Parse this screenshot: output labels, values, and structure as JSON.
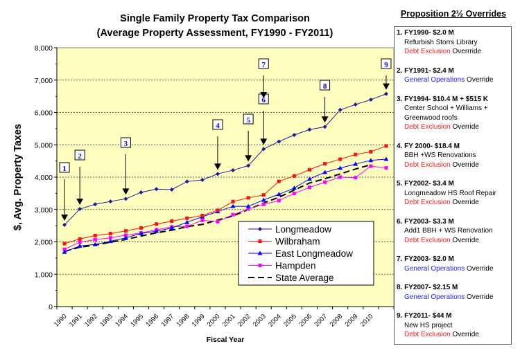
{
  "chart_data": {
    "type": "line",
    "title": "Single Family Property Tax Comparison",
    "subtitle": "(Average Property Assessment, FY1990 - FY2011)",
    "xlabel": "Fiscal Year",
    "ylabel": "$, Avg. Property Taxes",
    "ylim": [
      0,
      8000
    ],
    "yticks": [
      0,
      1000,
      2000,
      3000,
      4000,
      5000,
      6000,
      7000,
      8000
    ],
    "ytick_labels": [
      "0",
      "1,000",
      "2,000",
      "3,000",
      "4,000",
      "5,000",
      "6,000",
      "7,000",
      "8,000"
    ],
    "x": [
      1990,
      1991,
      1992,
      1993,
      1994,
      1995,
      1996,
      1997,
      1998,
      1999,
      2000,
      2001,
      2002,
      2003,
      2004,
      2005,
      2006,
      2007,
      2008,
      2009,
      2010,
      2011
    ],
    "xtick_labels": [
      "1990",
      "1991",
      "1992",
      "1993",
      "1994",
      "1995",
      "1996",
      "1997",
      "1998",
      "1999",
      "2000",
      "2001",
      "2002",
      "2003",
      "2004",
      "2005",
      "2006",
      "2007",
      "2008",
      "2009",
      "2010"
    ],
    "grid": "horizontal dotted",
    "legend_placement": "lower-right",
    "plot_background": "#ffffc0",
    "series": [
      {
        "name": "Longmeadow",
        "color": "#1a1a99",
        "marker": "diamond",
        "values": [
          2525,
          3015,
          3160,
          3250,
          3330,
          3530,
          3630,
          3615,
          3865,
          3915,
          4100,
          4215,
          4355,
          4870,
          5100,
          5305,
          5470,
          5555,
          6080,
          6245,
          6395,
          6575
        ]
      },
      {
        "name": "Wilbraham",
        "color": "#ff1010",
        "marker": "square",
        "values": [
          1945,
          2090,
          2195,
          2255,
          2340,
          2430,
          2550,
          2640,
          2730,
          2815,
          2975,
          3245,
          3360,
          3450,
          3870,
          4035,
          4230,
          4415,
          4555,
          4700,
          4785,
          4965
        ]
      },
      {
        "name": "East Longmeadow",
        "color": "#0000ff",
        "marker": "triangle",
        "values": [
          1685,
          1875,
          1920,
          2020,
          2125,
          2260,
          2330,
          2430,
          2605,
          2775,
          2935,
          3100,
          3100,
          3295,
          3470,
          3665,
          3945,
          4150,
          4280,
          4405,
          4520,
          4555
        ]
      },
      {
        "name": "Hampden",
        "color": "#ff00ff",
        "marker": "square",
        "values": [
          1770,
          1990,
          2070,
          2125,
          2205,
          2275,
          2375,
          2465,
          2480,
          2665,
          2625,
          2840,
          3015,
          3160,
          3275,
          3495,
          3685,
          3845,
          4000,
          3985,
          4340,
          4285
        ]
      },
      {
        "name": "State Average",
        "color": "#000000",
        "marker": "none",
        "dash": true,
        "values": [
          1705,
          1835,
          1900,
          1990,
          2075,
          2180,
          2280,
          2360,
          2470,
          2540,
          2675,
          2800,
          3000,
          3200,
          3380,
          3600,
          3820,
          3950,
          4100,
          4250,
          4385,
          null
        ]
      }
    ],
    "annotations": [
      {
        "label": "1",
        "year": 1990
      },
      {
        "label": "2",
        "year": 1991
      },
      {
        "label": "3",
        "year": 1994
      },
      {
        "label": "4",
        "year": 2000
      },
      {
        "label": "5",
        "year": 2002
      },
      {
        "label": "6",
        "year": 2003
      },
      {
        "label": "7",
        "year": 2003
      },
      {
        "label": "8",
        "year": 2007
      },
      {
        "label": "9",
        "year": 2011
      }
    ]
  },
  "panel": {
    "title": "Proposition 2½ Overrides",
    "items": [
      {
        "head": "1. FY1990- $2.0 M",
        "lines": [
          "Refurbish Storrs Library"
        ],
        "type": "Debt Exclusion",
        "type_color": "red",
        "suffix": " Overrride"
      },
      {
        "head": "2. FY1991- $2.4 M",
        "lines": [],
        "type": "General Operations",
        "type_color": "blue",
        "suffix": " Override"
      },
      {
        "head": "3. FY1994- $10.4 M + $515 K",
        "lines": [
          "Center School + Williams +",
          "Greenwood roofs"
        ],
        "type": "Debt Exclusion",
        "type_color": "red",
        "suffix": " Override"
      },
      {
        "head": "4. FY 2000- $18.4 M",
        "lines": [
          "BBH +WS Renovations"
        ],
        "type": "Debt Exclusion",
        "type_color": "red",
        "suffix": " Override"
      },
      {
        "head": "5. FY2002- $3.4 M",
        "lines": [
          "Longmeadow HS Roof Repair"
        ],
        "type": "Debt Exclusion",
        "type_color": "red",
        "suffix": " Override"
      },
      {
        "head": "6. FY2003- $3.3 M",
        "lines": [
          "Add1 BBH + WS Renovation"
        ],
        "type": "Debt Exclusion",
        "type_color": "red",
        "suffix": " Override"
      },
      {
        "head": "7. FY2003- $2.0 M",
        "lines": [],
        "type": "General Operations",
        "type_color": "blue",
        "suffix": " Override"
      },
      {
        "head": "8. FY2007- $2.15 M",
        "lines": [],
        "type": "General Operations",
        "type_color": "blue",
        "suffix": " Override"
      },
      {
        "head": "9. FY2011- $44 M",
        "lines": [
          "New HS project"
        ],
        "type": "Debt Exclusion",
        "type_color": "red",
        "suffix": " Override"
      }
    ]
  }
}
